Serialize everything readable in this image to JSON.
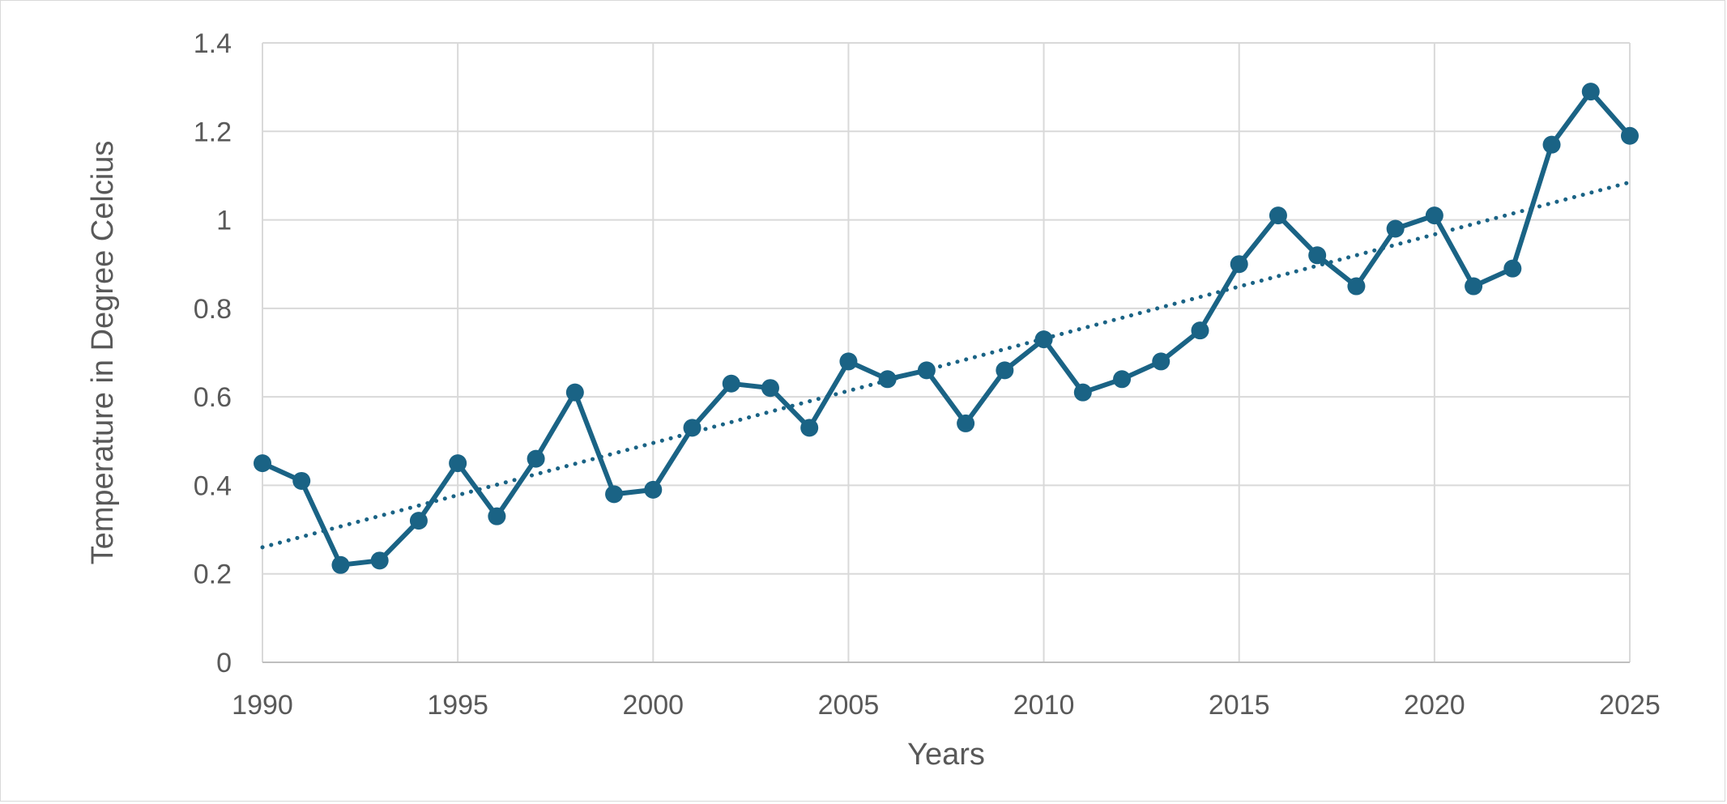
{
  "chart_data": {
    "type": "line",
    "title": "",
    "xlabel": "Years",
    "ylabel": "Temperature in Degree Celcius",
    "xlim": [
      1990,
      2025
    ],
    "ylim": [
      0,
      1.4
    ],
    "x_ticks": [
      1990,
      1995,
      2000,
      2005,
      2010,
      2015,
      2020,
      2025
    ],
    "y_ticks": [
      0,
      0.2,
      0.4,
      0.6,
      0.8,
      1,
      1.2,
      1.4
    ],
    "x_tick_labels": [
      "1990",
      "1995",
      "2000",
      "2005",
      "2010",
      "2015",
      "2020",
      "2025"
    ],
    "y_tick_labels": [
      "0",
      "0.2",
      "0.4",
      "0.6",
      "0.8",
      "1",
      "1.2",
      "1.4"
    ],
    "grid": true,
    "legend": "none",
    "series": [
      {
        "color": "#1a6385",
        "marker": "circle",
        "x": [
          1990,
          1991,
          1992,
          1993,
          1994,
          1995,
          1996,
          1997,
          1998,
          1999,
          2000,
          2001,
          2002,
          2003,
          2004,
          2005,
          2006,
          2007,
          2008,
          2009,
          2010,
          2011,
          2012,
          2013,
          2014,
          2015,
          2016,
          2017,
          2018,
          2019,
          2020,
          2021,
          2022,
          2023,
          2024,
          2025
        ],
        "y": [
          0.45,
          0.41,
          0.22,
          0.23,
          0.32,
          0.45,
          0.33,
          0.46,
          0.61,
          0.38,
          0.39,
          0.53,
          0.63,
          0.62,
          0.53,
          0.68,
          0.64,
          0.66,
          0.54,
          0.66,
          0.73,
          0.61,
          0.64,
          0.68,
          0.75,
          0.9,
          1.01,
          0.92,
          0.85,
          0.98,
          1.01,
          0.85,
          0.89,
          1.17,
          1.29,
          1.19
        ]
      }
    ],
    "trendline": {
      "type": "linear",
      "style": "dotted",
      "color": "#1a6385",
      "x": [
        1990,
        2025
      ],
      "y": [
        0.26,
        1.085
      ]
    }
  }
}
